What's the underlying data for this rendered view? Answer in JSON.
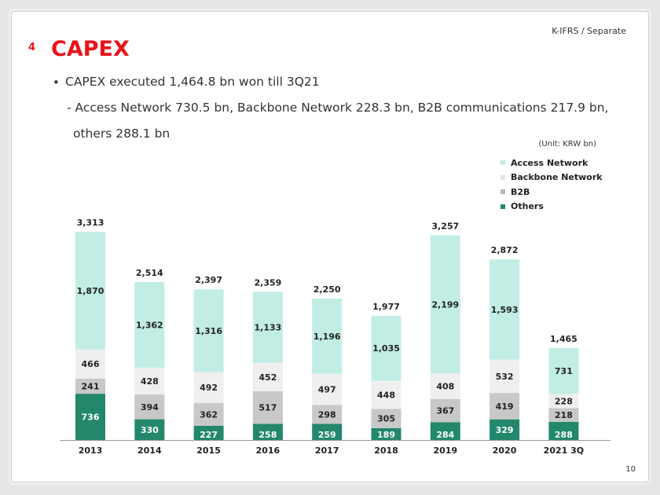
{
  "header": {
    "standard": "K-IFRS / Separate",
    "section_number": "4",
    "section_title": "CAPEX"
  },
  "summary": {
    "bullet": "CAPEX executed 1,464.8 bn won till 3Q21",
    "sub_line1": "- Access Network 730.5 bn, Backbone Network 228.3 bn, B2B communications 217.9 bn,",
    "sub_line2": "others 288.1 bn"
  },
  "unit_label": "(Unit: KRW bn)",
  "page_number": "10",
  "colors": {
    "accent": "#e8141b",
    "access": "#c1ede5",
    "backbone": "#efefef",
    "b2b": "#c8c8c8",
    "others": "#23876c"
  },
  "chart_data": {
    "type": "bar",
    "stacked": true,
    "categories": [
      "2013",
      "2014",
      "2015",
      "2016",
      "2017",
      "2018",
      "2019",
      "2020",
      "2021 3Q"
    ],
    "series": [
      {
        "name": "Others",
        "values": [
          736,
          330,
          227,
          258,
          259,
          189,
          284,
          329,
          288
        ]
      },
      {
        "name": "B2B",
        "values": [
          241,
          394,
          362,
          517,
          298,
          305,
          367,
          419,
          218
        ]
      },
      {
        "name": "Backbone Network",
        "values": [
          466,
          428,
          492,
          452,
          497,
          448,
          408,
          532,
          228
        ]
      },
      {
        "name": "Access Network",
        "values": [
          1870,
          1362,
          1316,
          1133,
          1196,
          1035,
          2199,
          1593,
          731
        ]
      }
    ],
    "totals": [
      3313,
      2514,
      2397,
      2359,
      2250,
      1977,
      3257,
      2872,
      1465
    ],
    "legend": [
      "Access Network",
      "Backbone Network",
      "B2B",
      "Others"
    ],
    "legend_position": "top-right",
    "ylim": [
      0,
      3400
    ],
    "grid": false
  }
}
